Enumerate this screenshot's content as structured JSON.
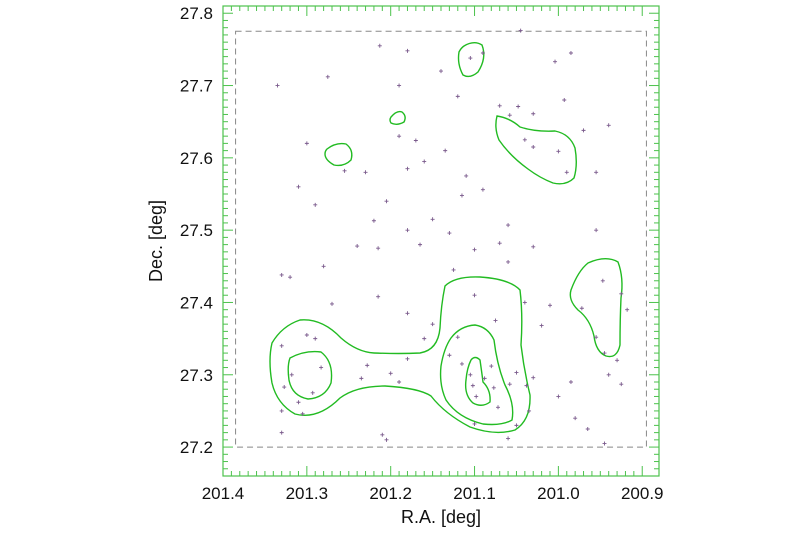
{
  "chart_data": {
    "type": "scatter",
    "xlabel": "R.A. [deg]",
    "ylabel": "Dec. [deg]",
    "xlim": [
      201.4,
      200.88
    ],
    "ylim": [
      27.16,
      27.81
    ],
    "x_reversed": true,
    "xticks": [
      "201.4",
      "201.3",
      "201.2",
      "201.1",
      "201.0",
      "200.9"
    ],
    "xtick_values": [
      201.4,
      201.3,
      201.2,
      201.1,
      201.0,
      200.9
    ],
    "yticks": [
      "27.2",
      "27.3",
      "27.4",
      "27.5",
      "27.6",
      "27.7",
      "27.8"
    ],
    "ytick_values": [
      27.2,
      27.3,
      27.4,
      27.5,
      27.6,
      27.7,
      27.8
    ],
    "frame_color": "#4cc24c",
    "contour_color": "#22bb22",
    "point_color": "#7a5a8c",
    "footprint": {
      "ra_min": 200.895,
      "ra_max": 201.385,
      "dec_min": 27.2,
      "dec_max": 27.775
    },
    "points": [
      [
        201.335,
        27.7
      ],
      [
        201.275,
        27.712
      ],
      [
        201.213,
        27.755
      ],
      [
        201.18,
        27.748
      ],
      [
        201.105,
        27.738
      ],
      [
        201.09,
        27.745
      ],
      [
        201.045,
        27.776
      ],
      [
        201.004,
        27.733
      ],
      [
        200.985,
        27.745
      ],
      [
        201.14,
        27.72
      ],
      [
        201.19,
        27.7
      ],
      [
        201.07,
        27.672
      ],
      [
        201.048,
        27.671
      ],
      [
        201.03,
        27.661
      ],
      [
        200.993,
        27.68
      ],
      [
        201.12,
        27.685
      ],
      [
        201.058,
        27.659
      ],
      [
        201.17,
        27.624
      ],
      [
        201.16,
        27.595
      ],
      [
        201.135,
        27.61
      ],
      [
        201.3,
        27.62
      ],
      [
        201.31,
        27.56
      ],
      [
        201.29,
        27.535
      ],
      [
        201.255,
        27.582
      ],
      [
        201.19,
        27.63
      ],
      [
        201.04,
        27.625
      ],
      [
        201.03,
        27.615
      ],
      [
        201.0,
        27.609
      ],
      [
        200.97,
        27.638
      ],
      [
        200.94,
        27.645
      ],
      [
        201.11,
        27.575
      ],
      [
        201.09,
        27.556
      ],
      [
        201.115,
        27.548
      ],
      [
        201.18,
        27.585
      ],
      [
        201.205,
        27.54
      ],
      [
        201.23,
        27.58
      ],
      [
        200.955,
        27.58
      ],
      [
        200.99,
        27.58
      ],
      [
        201.22,
        27.513
      ],
      [
        201.15,
        27.515
      ],
      [
        201.18,
        27.5
      ],
      [
        201.13,
        27.496
      ],
      [
        201.06,
        27.507
      ],
      [
        201.1,
        27.473
      ],
      [
        201.24,
        27.478
      ],
      [
        201.215,
        27.475
      ],
      [
        201.165,
        27.48
      ],
      [
        201.07,
        27.482
      ],
      [
        201.03,
        27.477
      ],
      [
        200.955,
        27.5
      ],
      [
        201.33,
        27.438
      ],
      [
        201.28,
        27.45
      ],
      [
        201.125,
        27.445
      ],
      [
        201.06,
        27.456
      ],
      [
        201.32,
        27.435
      ],
      [
        201.27,
        27.398
      ],
      [
        201.215,
        27.408
      ],
      [
        201.18,
        27.385
      ],
      [
        201.15,
        27.37
      ],
      [
        201.12,
        27.352
      ],
      [
        201.1,
        27.41
      ],
      [
        201.075,
        27.375
      ],
      [
        201.04,
        27.4
      ],
      [
        201.02,
        27.368
      ],
      [
        201.01,
        27.396
      ],
      [
        200.972,
        27.392
      ],
      [
        200.955,
        27.352
      ],
      [
        200.947,
        27.43
      ],
      [
        200.925,
        27.412
      ],
      [
        200.918,
        27.39
      ],
      [
        201.3,
        27.355
      ],
      [
        201.33,
        27.34
      ],
      [
        201.29,
        27.35
      ],
      [
        201.283,
        27.31
      ],
      [
        201.318,
        27.3
      ],
      [
        201.327,
        27.283
      ],
      [
        201.31,
        27.262
      ],
      [
        201.293,
        27.275
      ],
      [
        201.33,
        27.25
      ],
      [
        201.305,
        27.246
      ],
      [
        201.228,
        27.313
      ],
      [
        201.2,
        27.302
      ],
      [
        201.19,
        27.29
      ],
      [
        201.235,
        27.295
      ],
      [
        201.18,
        27.322
      ],
      [
        201.13,
        27.327
      ],
      [
        201.115,
        27.315
      ],
      [
        201.105,
        27.3
      ],
      [
        201.102,
        27.285
      ],
      [
        201.098,
        27.27
      ],
      [
        201.088,
        27.295
      ],
      [
        201.08,
        27.312
      ],
      [
        201.077,
        27.282
      ],
      [
        201.072,
        27.255
      ],
      [
        201.058,
        27.287
      ],
      [
        201.05,
        27.303
      ],
      [
        201.038,
        27.285
      ],
      [
        201.03,
        27.296
      ],
      [
        201.035,
        27.25
      ],
      [
        201.05,
        27.23
      ],
      [
        201.06,
        27.212
      ],
      [
        200.985,
        27.29
      ],
      [
        200.98,
        27.24
      ],
      [
        201.0,
        27.27
      ],
      [
        200.945,
        27.33
      ],
      [
        200.93,
        27.32
      ],
      [
        200.925,
        27.287
      ],
      [
        200.94,
        27.3
      ],
      [
        201.21,
        27.217
      ],
      [
        201.205,
        27.21
      ],
      [
        201.33,
        27.22
      ],
      [
        201.1,
        27.232
      ],
      [
        200.965,
        27.225
      ],
      [
        200.945,
        27.205
      ],
      [
        201.16,
        27.35
      ]
    ]
  }
}
